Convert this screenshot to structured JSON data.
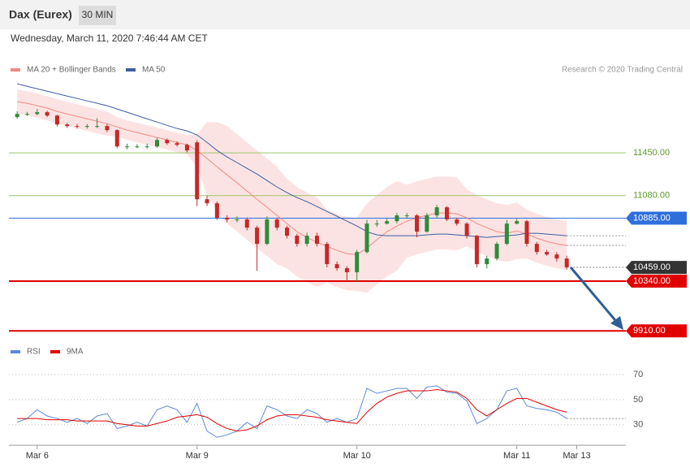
{
  "header": {
    "title": "Dax (Eurex)",
    "timeframe": "30 MIN"
  },
  "timestamp": "Wednesday, March 11, 2020 7:46:44 AM CET",
  "credit": "Research © 2020 Trading Central",
  "chart_data": [
    {
      "type": "candlestick",
      "categories": [
        null,
        null,
        "Mar 6",
        null,
        null,
        null,
        null,
        null,
        null,
        null,
        null,
        null,
        null,
        null,
        null,
        null,
        null,
        null,
        "Mar 9",
        null,
        null,
        null,
        null,
        null,
        null,
        null,
        null,
        null,
        null,
        null,
        null,
        null,
        null,
        null,
        "Mar 10",
        null,
        null,
        null,
        null,
        null,
        null,
        null,
        null,
        null,
        null,
        null,
        null,
        null,
        null,
        null,
        "Mar 11",
        null,
        null,
        null,
        null,
        null,
        "Mar 13"
      ],
      "open": [
        11760,
        11787,
        11787,
        11802,
        11773,
        11696,
        11682,
        11675,
        11682,
        11682,
        11647,
        11506,
        11506,
        11506,
        11506,
        11562,
        11534,
        11520,
        11541,
        11049,
        11014,
        10888,
        10874,
        10874,
        10803,
        10663,
        10874,
        10803,
        10733,
        10663,
        10733,
        10663,
        10487,
        10452,
        10417,
        10592,
        10838,
        10838,
        10859,
        10909,
        10909,
        10768,
        10909,
        10979,
        10874,
        10838,
        10733,
        10487,
        10536,
        10663,
        10838,
        10859,
        10663,
        10592,
        10571,
        10536,
        null
      ],
      "high": [
        11810,
        11805,
        11830,
        11815,
        11780,
        11710,
        11700,
        11700,
        11750,
        11700,
        11655,
        11530,
        11525,
        11530,
        11580,
        11575,
        11550,
        11530,
        11560,
        11080,
        11030,
        10910,
        10900,
        10890,
        10820,
        10900,
        10890,
        10820,
        10750,
        10760,
        10760,
        10680,
        10510,
        10470,
        10610,
        10870,
        10870,
        10880,
        10930,
        10930,
        10920,
        10930,
        11000,
        10990,
        10890,
        10850,
        10740,
        10560,
        10680,
        10870,
        10880,
        10870,
        10680,
        10610,
        10590,
        10560,
        null
      ],
      "low": [
        11745,
        11770,
        11775,
        11760,
        11680,
        11665,
        11660,
        11660,
        11665,
        11630,
        11490,
        11480,
        11490,
        11485,
        11495,
        11520,
        11505,
        11455,
        10990,
        10990,
        10870,
        10850,
        10850,
        10780,
        10430,
        10650,
        10780,
        10710,
        10640,
        10640,
        10640,
        10460,
        10430,
        10340,
        10340,
        10580,
        10810,
        10830,
        10840,
        10880,
        10720,
        10760,
        10890,
        10860,
        10820,
        10710,
        10460,
        10450,
        10520,
        10650,
        10830,
        10640,
        10570,
        10560,
        10510,
        10440,
        null
      ],
      "close": [
        11787,
        11787,
        11802,
        11773,
        11696,
        11682,
        11675,
        11682,
        11682,
        11647,
        11506,
        11506,
        11506,
        11506,
        11562,
        11534,
        11520,
        11471,
        11049,
        11014,
        10888,
        10874,
        10874,
        10803,
        10663,
        10874,
        10803,
        10733,
        10663,
        10733,
        10663,
        10487,
        10452,
        10417,
        10592,
        10838,
        10838,
        10859,
        10909,
        10909,
        10768,
        10909,
        10979,
        10874,
        10838,
        10733,
        10487,
        10536,
        10663,
        10838,
        10859,
        10663,
        10592,
        10571,
        10536,
        10459,
        null
      ],
      "up_color": "#2e8b3a",
      "down_color": "#c62828",
      "series": [
        {
          "name": "MA 20 + Bollinger Bands",
          "color": "#f08a84",
          "band_color": "#fbdada",
          "values": [
            11893,
            11879,
            11858,
            11837,
            11809,
            11787,
            11766,
            11745,
            11724,
            11703,
            11675,
            11647,
            11626,
            11605,
            11584,
            11562,
            11541,
            11520,
            11471,
            11401,
            11330,
            11260,
            11190,
            11120,
            11049,
            10979,
            10909,
            10838,
            10768,
            10719,
            10677,
            10642,
            10606,
            10578,
            10571,
            10627,
            10698,
            10768,
            10817,
            10859,
            10888,
            10909,
            10930,
            10930,
            10923,
            10888,
            10838,
            10803,
            10768,
            10754,
            10775,
            10747,
            10712,
            10684,
            10663,
            10649,
            null
          ],
          "upper": [
            11998,
            11984,
            11963,
            11942,
            11914,
            11892,
            11871,
            11850,
            11829,
            11808,
            11759,
            11731,
            11710,
            11689,
            11668,
            11646,
            11625,
            11604,
            11612,
            11717,
            11717,
            11682,
            11612,
            11542,
            11471,
            11401,
            11331,
            11225,
            11155,
            11106,
            11064,
            10958,
            10922,
            10894,
            10887,
            11014,
            11085,
            11155,
            11204,
            11175,
            11204,
            11225,
            11246,
            11246,
            11239,
            11134,
            11084,
            11049,
            11014,
            11000,
            11021,
            10958,
            10923,
            10895,
            10874,
            10860,
            null
          ],
          "lower": [
            11788,
            11774,
            11753,
            11732,
            11704,
            11682,
            11661,
            11640,
            11619,
            11598,
            11591,
            11563,
            11542,
            11521,
            11500,
            11478,
            11457,
            11436,
            11330,
            11085,
            10943,
            10838,
            10768,
            10698,
            10627,
            10557,
            10487,
            10451,
            10381,
            10332,
            10290,
            10326,
            10290,
            10262,
            10255,
            10240,
            10311,
            10381,
            10430,
            10543,
            10572,
            10593,
            10614,
            10614,
            10607,
            10642,
            10592,
            10557,
            10522,
            10508,
            10529,
            10536,
            10501,
            10473,
            10452,
            10438,
            null
          ]
        },
        {
          "name": "MA 50",
          "color": "#3d5fa3",
          "values": [
            12048,
            12026,
            12005,
            11984,
            11963,
            11942,
            11921,
            11900,
            11879,
            11858,
            11830,
            11802,
            11773,
            11745,
            11717,
            11689,
            11661,
            11640,
            11605,
            11541,
            11471,
            11415,
            11366,
            11316,
            11267,
            11211,
            11155,
            11106,
            11063,
            11028,
            10986,
            10944,
            10902,
            10859,
            10817,
            10768,
            10740,
            10733,
            10733,
            10733,
            10733,
            10740,
            10747,
            10747,
            10740,
            10733,
            10726,
            10719,
            10726,
            10733,
            10740,
            10754,
            10754,
            10747,
            10740,
            10733,
            null
          ]
        }
      ],
      "levels": [
        {
          "value": 11450,
          "label": "11450.00",
          "color": "#9cc46a",
          "width": 1,
          "tagged": false
        },
        {
          "value": 11080,
          "label": "11080.00",
          "color": "#9cc46a",
          "width": 1,
          "tagged": false
        },
        {
          "value": 10885,
          "label": "10885.00",
          "color": "#2f6fdc",
          "width": 1,
          "tagged": true
        },
        {
          "value": 10459,
          "label": "10459.00",
          "color": "#333333",
          "width": 1,
          "tagged": true,
          "dashed": true
        },
        {
          "value": 10340,
          "label": "10340.00",
          "color": "#e00000",
          "width": 2,
          "tagged": true
        },
        {
          "value": 9910,
          "label": "9910.00",
          "color": "#e00000",
          "width": 2,
          "tagged": true
        }
      ],
      "ylim": [
        9820,
        12070
      ]
    },
    {
      "type": "line",
      "series": [
        {
          "name": "RSI",
          "color": "#5b8ad6",
          "values": [
            32,
            35,
            42,
            37,
            35,
            32,
            35,
            31,
            37,
            39,
            27,
            29,
            32,
            29,
            42,
            45,
            42,
            32,
            47,
            25,
            20,
            22,
            25,
            32,
            27,
            45,
            42,
            37,
            35,
            42,
            39,
            32,
            35,
            32,
            35,
            59,
            55,
            57,
            59,
            59,
            51,
            60,
            61,
            56,
            55,
            49,
            31,
            35,
            42,
            57,
            59,
            45,
            43,
            42,
            40,
            35,
            null
          ]
        },
        {
          "name": "9MA",
          "color": "#e00000",
          "values": [
            35,
            35,
            35,
            34,
            34,
            34,
            33,
            33,
            33,
            33,
            31,
            30,
            29,
            29,
            31,
            33,
            36,
            37,
            38,
            36,
            31,
            27,
            25,
            26,
            29,
            34,
            37,
            38,
            38,
            37,
            36,
            34,
            33,
            32,
            31,
            40,
            47,
            52,
            55,
            57,
            57,
            57,
            58,
            57,
            56,
            51,
            42,
            37,
            42,
            47,
            51,
            51,
            48,
            45,
            42,
            40,
            null
          ]
        }
      ],
      "ylim": [
        15,
        80
      ],
      "yticks": [
        30,
        50,
        70
      ],
      "grid": true
    }
  ]
}
